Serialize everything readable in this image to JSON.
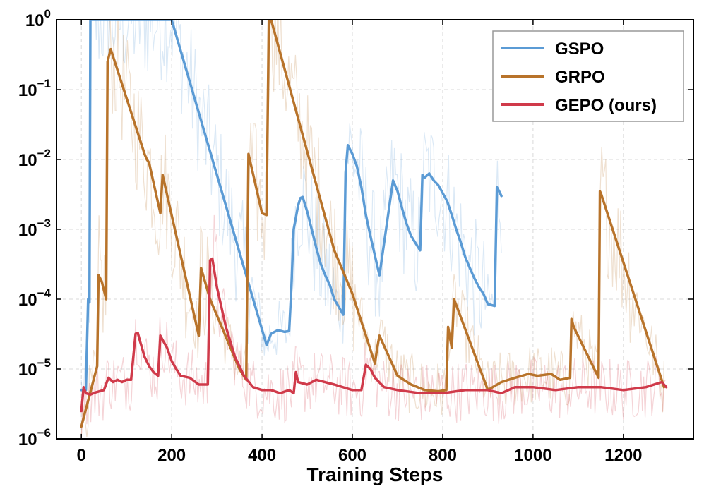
{
  "chart_data": {
    "type": "line",
    "title": "",
    "xlabel": "Training Steps",
    "ylabel": "",
    "yscale": "log",
    "xlim": [
      -55,
      1355
    ],
    "ylim": [
      1e-06,
      1
    ],
    "grid": true,
    "legend_position": "top-right",
    "xticks": [
      0,
      200,
      400,
      600,
      800,
      1000,
      1200
    ],
    "xtick_labels": [
      "0",
      "200",
      "400",
      "600",
      "800",
      "1000",
      "1200"
    ],
    "yticks": [
      1e-06,
      1e-05,
      0.0001,
      0.001,
      0.01,
      0.1,
      1
    ],
    "ytick_labels": [
      {
        "base": "10",
        "exp": "−6"
      },
      {
        "base": "10",
        "exp": "−5"
      },
      {
        "base": "10",
        "exp": "−4"
      },
      {
        "base": "10",
        "exp": "−3"
      },
      {
        "base": "10",
        "exp": "−2"
      },
      {
        "base": "10",
        "exp": "−1"
      },
      {
        "base": "10",
        "exp": "0"
      }
    ],
    "series": [
      {
        "name": "GSPO",
        "color": "#5b9bd5",
        "x": [
          0,
          10,
          15,
          18,
          20,
          200,
          410,
          420,
          435,
          450,
          460,
          465,
          470,
          480,
          485,
          490,
          500,
          510,
          520,
          530,
          540,
          550,
          560,
          580,
          585,
          590,
          600,
          610,
          620,
          630,
          640,
          660,
          690,
          700,
          710,
          720,
          730,
          750,
          755,
          760,
          770,
          780,
          790,
          800,
          810,
          820,
          830,
          840,
          850,
          860,
          870,
          880,
          890,
          900,
          915,
          920,
          925,
          930
        ],
        "y": [
          5e-06,
          5e-06,
          0.0001,
          9e-05,
          1,
          1,
          2.2e-05,
          3.2e-05,
          3.6e-05,
          3.4e-05,
          3.5e-05,
          0.00015,
          0.001,
          0.0022,
          0.0028,
          0.0029,
          0.0018,
          0.001,
          0.00055,
          0.00032,
          0.00022,
          0.00016,
          0.0001,
          6e-05,
          0.0065,
          0.016,
          0.012,
          0.008,
          0.004,
          0.0016,
          0.0008,
          0.00022,
          0.005,
          0.0035,
          0.002,
          0.0012,
          0.0008,
          0.0005,
          0.006,
          0.0055,
          0.0063,
          0.005,
          0.0043,
          0.0033,
          0.0025,
          0.0016,
          0.001,
          0.00065,
          0.0004,
          0.00028,
          0.0002,
          0.00015,
          0.00012,
          8.5e-05,
          8e-05,
          0.004,
          0.0035,
          0.003
        ]
      },
      {
        "name": "GRPO",
        "color": "#b8732a",
        "x": [
          0,
          35,
          38,
          45,
          52,
          55,
          58,
          65,
          140,
          145,
          150,
          175,
          180,
          260,
          265,
          285,
          350,
          365,
          370,
          400,
          410,
          415,
          420,
          560,
          600,
          650,
          655,
          660,
          700,
          730,
          760,
          790,
          808,
          812,
          820,
          825,
          900,
          930,
          960,
          990,
          1010,
          1040,
          1060,
          1082,
          1085,
          1090,
          1145,
          1148,
          1150,
          1290
        ],
        "y": [
          1.5e-06,
          1.1e-05,
          0.00022,
          0.00018,
          0.00012,
          0.0001,
          0.25,
          0.38,
          0.012,
          0.01,
          0.009,
          0.0017,
          0.006,
          3e-05,
          0.00028,
          0.0001,
          1e-05,
          7e-06,
          0.012,
          0.0017,
          0.0016,
          1,
          1,
          0.0005,
          0.00012,
          1.2e-05,
          2e-05,
          3e-05,
          8e-06,
          6e-06,
          5e-06,
          4.8e-06,
          5e-06,
          4e-05,
          2e-05,
          0.0001,
          5e-06,
          6.5e-06,
          7.5e-06,
          8.5e-06,
          8e-06,
          8.5e-06,
          7e-06,
          7.5e-06,
          5.2e-05,
          4e-05,
          7.5e-06,
          0.0035,
          0.0033,
          5.5e-06
        ]
      },
      {
        "name": "GEPO (ours)",
        "color": "#d03a4a",
        "x": [
          0,
          5,
          10,
          20,
          30,
          50,
          60,
          70,
          80,
          90,
          100,
          110,
          120,
          125,
          130,
          140,
          150,
          160,
          170,
          175,
          180,
          190,
          200,
          210,
          220,
          240,
          260,
          280,
          285,
          290,
          295,
          300,
          320,
          340,
          360,
          380,
          400,
          420,
          440,
          460,
          470,
          475,
          480,
          500,
          520,
          560,
          600,
          620,
          630,
          640,
          650,
          670,
          700,
          750,
          800,
          850,
          900,
          930,
          960,
          1000,
          1050,
          1100,
          1150,
          1200,
          1250,
          1285,
          1295
        ],
        "y": [
          2.5e-06,
          5.5e-06,
          4.5e-06,
          4.3e-06,
          4.6e-06,
          5e-06,
          7.5e-06,
          6.5e-06,
          7e-06,
          6.5e-06,
          7e-06,
          7e-06,
          3.2e-05,
          3.3e-05,
          2.5e-05,
          1.5e-05,
          1.1e-05,
          9e-06,
          8e-06,
          3e-05,
          2.6e-05,
          2e-05,
          1.3e-05,
          1e-05,
          8e-06,
          7.5e-06,
          6e-06,
          6e-06,
          0.00036,
          0.00038,
          0.00024,
          0.00015,
          4e-05,
          1.5e-05,
          8e-06,
          5.5e-06,
          5e-06,
          5e-06,
          4.5e-06,
          5e-06,
          4.5e-06,
          9e-06,
          6.5e-06,
          6e-06,
          7e-06,
          6e-06,
          5e-06,
          5e-06,
          1.15e-05,
          1e-05,
          7.5e-06,
          5.5e-06,
          5e-06,
          4.5e-06,
          4.5e-06,
          5e-06,
          5e-06,
          4.5e-06,
          5.5e-06,
          5.5e-06,
          5e-06,
          5.5e-06,
          5.5e-06,
          5e-06,
          5.5e-06,
          6.5e-06,
          5.5e-06
        ]
      }
    ]
  }
}
